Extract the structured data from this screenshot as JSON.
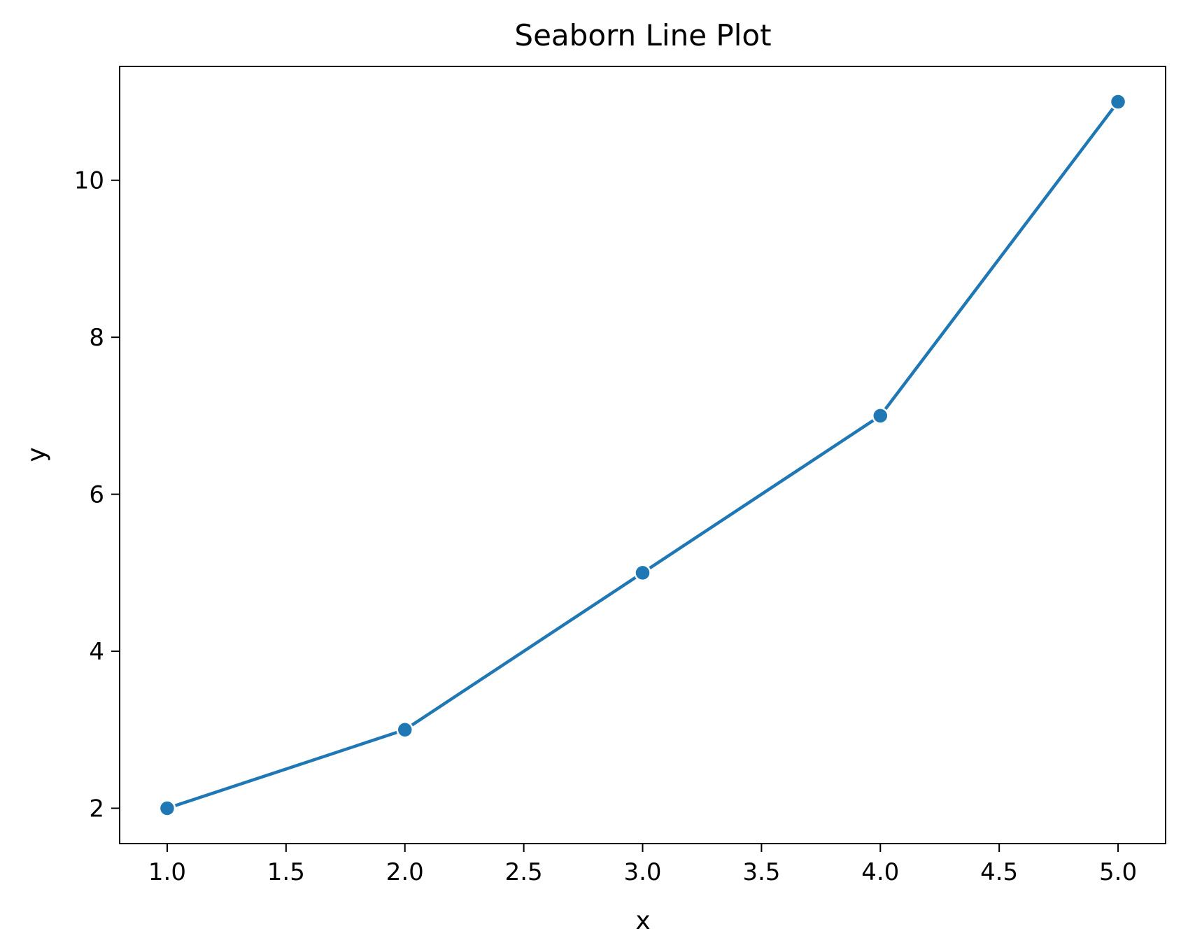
{
  "chart_data": {
    "type": "line",
    "title": "Seaborn Line Plot",
    "xlabel": "x",
    "ylabel": "y",
    "x": [
      1,
      2,
      3,
      4,
      5
    ],
    "series": [
      {
        "values": [
          2,
          3,
          5,
          7,
          11
        ],
        "color": "#1f77b4",
        "marker": "circle"
      }
    ],
    "xlim": [
      0.8,
      5.2
    ],
    "ylim": [
      1.55,
      11.45
    ],
    "xticks": [
      1.0,
      1.5,
      2.0,
      2.5,
      3.0,
      3.5,
      4.0,
      4.5,
      5.0
    ],
    "xtick_labels": [
      "1.0",
      "1.5",
      "2.0",
      "2.5",
      "3.0",
      "3.5",
      "4.0",
      "4.5",
      "5.0"
    ],
    "yticks": [
      2,
      4,
      6,
      8,
      10
    ],
    "ytick_labels": [
      "2",
      "4",
      "6",
      "8",
      "10"
    ],
    "grid": false,
    "legend": "none"
  }
}
